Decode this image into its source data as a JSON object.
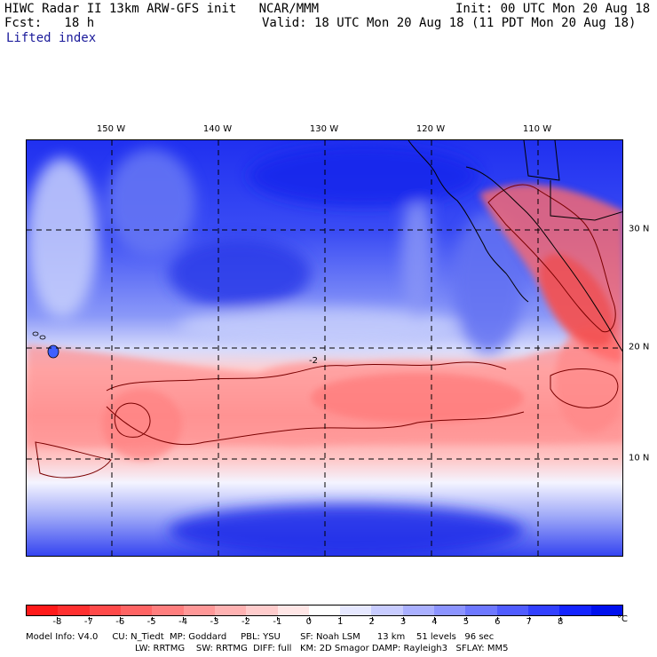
{
  "header": {
    "line1_left": "HIWC Radar II 13km ARW-GFS init   NCAR/MMM",
    "line1_right": "Init: 00 UTC Mon 20 Aug 18",
    "line2_left": "Fcst:   18 h",
    "line2_right": "Valid: 18 UTC Mon 20 Aug 18 (11 PDT Mon 20 Aug 18)",
    "field_name": "Lifted index"
  },
  "map": {
    "lon_labels": [
      "150 W",
      "140 W",
      "130 W",
      "120 W",
      "110 W"
    ],
    "lat_labels": [
      "30 N",
      "20 N",
      "10 N"
    ],
    "contour_label": "-2"
  },
  "colorbar": {
    "labels": [
      "-8",
      "-7",
      "-6",
      "-5",
      "-4",
      "-3",
      "-2",
      "-1",
      "0",
      "1",
      "2",
      "3",
      "4",
      "5",
      "6",
      "7",
      "8"
    ],
    "unit": "°C",
    "colors": [
      "#ff1a1a",
      "#ff3030",
      "#ff4a4a",
      "#ff6464",
      "#ff7e7e",
      "#ff9898",
      "#ffb2b2",
      "#ffcccc",
      "#ffe6e6",
      "#ffffff",
      "#e6e8ff",
      "#c8ccff",
      "#aab0ff",
      "#8c94ff",
      "#6e78ff",
      "#505cff",
      "#3240ff",
      "#1424ff",
      "#0010ee"
    ]
  },
  "footer": {
    "line1": "Model Info: V4.0     CU: N_Tiedt  MP: Goddard     PBL: YSU       SF: Noah LSM      13 km    51 levels   96 sec",
    "line2": "LW: RRTMG    SW: RRTMG  DIFF: full   KM: 2D Smagor DAMP: Rayleigh3   SFLAY: MM5"
  }
}
